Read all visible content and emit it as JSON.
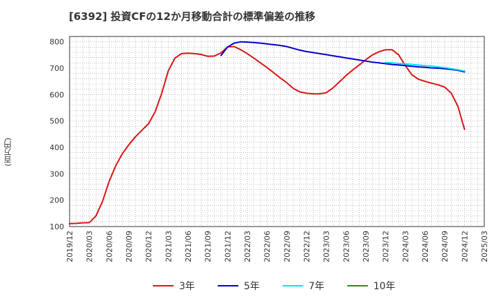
{
  "title": "[6392]  投資CFの12か月移動合計の標準偏差の推移",
  "y_unit_label": "(百万円)",
  "chart_data": {
    "type": "line",
    "title": "[6392]  投資CFの12か月移動合計の標準偏差の推移",
    "ylabel": "(百万円)",
    "xlabel": "",
    "ylim": [
      100,
      820
    ],
    "yticks": [
      100,
      200,
      300,
      400,
      500,
      600,
      700,
      800
    ],
    "x_range": [
      "2019-12",
      "2025-03"
    ],
    "xticks": [
      "2019/12",
      "2020/03",
      "2020/06",
      "2020/09",
      "2020/12",
      "2021/03",
      "2021/06",
      "2021/09",
      "2021/12",
      "2022/03",
      "2022/06",
      "2022/09",
      "2022/12",
      "2023/03",
      "2023/06",
      "2023/09",
      "2023/12",
      "2024/03",
      "2024/06",
      "2024/09",
      "2024/12",
      "2025/03"
    ],
    "grid": true,
    "legend_position": "bottom",
    "series": [
      {
        "name": "3年",
        "color": "#dd1111",
        "x": [
          "2019-12",
          "2020-01",
          "2020-02",
          "2020-03",
          "2020-04",
          "2020-05",
          "2020-06",
          "2020-07",
          "2020-08",
          "2020-09",
          "2020-10",
          "2020-11",
          "2020-12",
          "2021-01",
          "2021-02",
          "2021-03",
          "2021-04",
          "2021-05",
          "2021-06",
          "2021-07",
          "2021-08",
          "2021-09",
          "2021-10",
          "2021-11",
          "2021-12",
          "2022-01",
          "2022-02",
          "2022-03",
          "2022-04",
          "2022-05",
          "2022-06",
          "2022-07",
          "2022-08",
          "2022-09",
          "2022-10",
          "2022-11",
          "2022-12",
          "2023-01",
          "2023-02",
          "2023-03",
          "2023-04",
          "2023-05",
          "2023-06",
          "2023-07",
          "2023-08",
          "2023-09",
          "2023-10",
          "2023-11",
          "2023-12",
          "2024-01",
          "2024-02",
          "2024-03",
          "2024-04",
          "2024-05",
          "2024-06",
          "2024-07",
          "2024-08",
          "2024-09",
          "2024-10",
          "2024-11",
          "2024-12"
        ],
        "values": [
          111,
          112,
          114,
          115,
          140,
          195,
          270,
          330,
          375,
          410,
          440,
          465,
          490,
          535,
          605,
          690,
          738,
          755,
          757,
          755,
          752,
          745,
          746,
          758,
          780,
          782,
          770,
          755,
          738,
          720,
          702,
          683,
          663,
          645,
          623,
          610,
          605,
          603,
          603,
          607,
          625,
          648,
          672,
          693,
          712,
          732,
          750,
          762,
          770,
          770,
          750,
          710,
          675,
          658,
          650,
          643,
          637,
          628,
          605,
          555,
          468
        ]
      },
      {
        "name": "5年",
        "color": "#0000cc",
        "x": [
          "2021-11",
          "2021-12",
          "2022-01",
          "2022-02",
          "2022-03",
          "2022-04",
          "2022-05",
          "2022-06",
          "2022-07",
          "2022-08",
          "2022-09",
          "2022-10",
          "2022-11",
          "2022-12",
          "2023-01",
          "2023-02",
          "2023-03",
          "2023-04",
          "2023-05",
          "2023-06",
          "2023-07",
          "2023-08",
          "2023-09",
          "2023-10",
          "2023-11",
          "2023-12",
          "2024-01",
          "2024-02",
          "2024-03",
          "2024-04",
          "2024-05",
          "2024-06",
          "2024-07",
          "2024-08",
          "2024-09",
          "2024-10",
          "2024-11",
          "2024-12"
        ],
        "values": [
          748,
          780,
          795,
          800,
          799,
          797,
          795,
          792,
          789,
          786,
          782,
          775,
          768,
          763,
          759,
          755,
          751,
          747,
          743,
          739,
          735,
          731,
          727,
          723,
          720,
          717,
          714,
          712,
          710,
          707,
          705,
          703,
          701,
          700,
          698,
          695,
          692,
          686
        ]
      },
      {
        "name": "7年",
        "color": "#00e5ee",
        "x": [
          "2023-12",
          "2024-01",
          "2024-02",
          "2024-03",
          "2024-04",
          "2024-05",
          "2024-06",
          "2024-07",
          "2024-08",
          "2024-09",
          "2024-10",
          "2024-11",
          "2024-12"
        ],
        "values": [
          722,
          720,
          718,
          716,
          714,
          712,
          710,
          708,
          705,
          702,
          698,
          694,
          689
        ]
      },
      {
        "name": "10年",
        "color": "#228b22",
        "x": [],
        "values": []
      }
    ]
  }
}
